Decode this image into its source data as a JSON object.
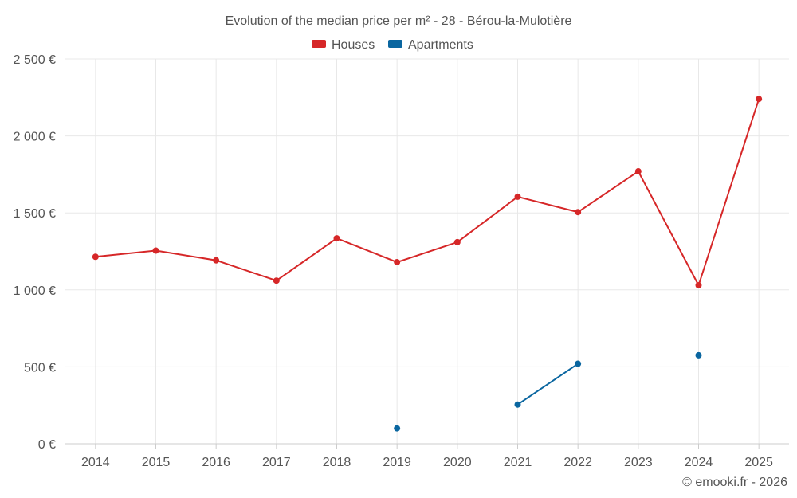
{
  "chart_data": {
    "type": "line",
    "title": "Evolution of the median price per m² - 28 - Bérou-la-Mulotière",
    "categories": [
      "2014",
      "2015",
      "2016",
      "2017",
      "2018",
      "2019",
      "2020",
      "2021",
      "2022",
      "2023",
      "2024",
      "2025"
    ],
    "series": [
      {
        "name": "Houses",
        "color": "#d62728",
        "values": [
          1215,
          1255,
          1192,
          1060,
          1335,
          1180,
          1310,
          1605,
          1505,
          1770,
          1030,
          2240
        ]
      },
      {
        "name": "Apartments",
        "color": "#0a66a0",
        "values": [
          null,
          null,
          null,
          null,
          null,
          100,
          null,
          255,
          520,
          null,
          575,
          null
        ]
      }
    ],
    "ylim": [
      0,
      2500
    ],
    "yticks": [
      0,
      500,
      1000,
      1500,
      2000,
      2500
    ],
    "ytick_labels": [
      "0 €",
      "500 €",
      "1 000 €",
      "1 500 €",
      "2 000 €",
      "2 500 €"
    ],
    "grid": true,
    "legend_position": "top-center",
    "xlabel": "",
    "ylabel": ""
  },
  "credit": "© emooki.fr - 2026"
}
